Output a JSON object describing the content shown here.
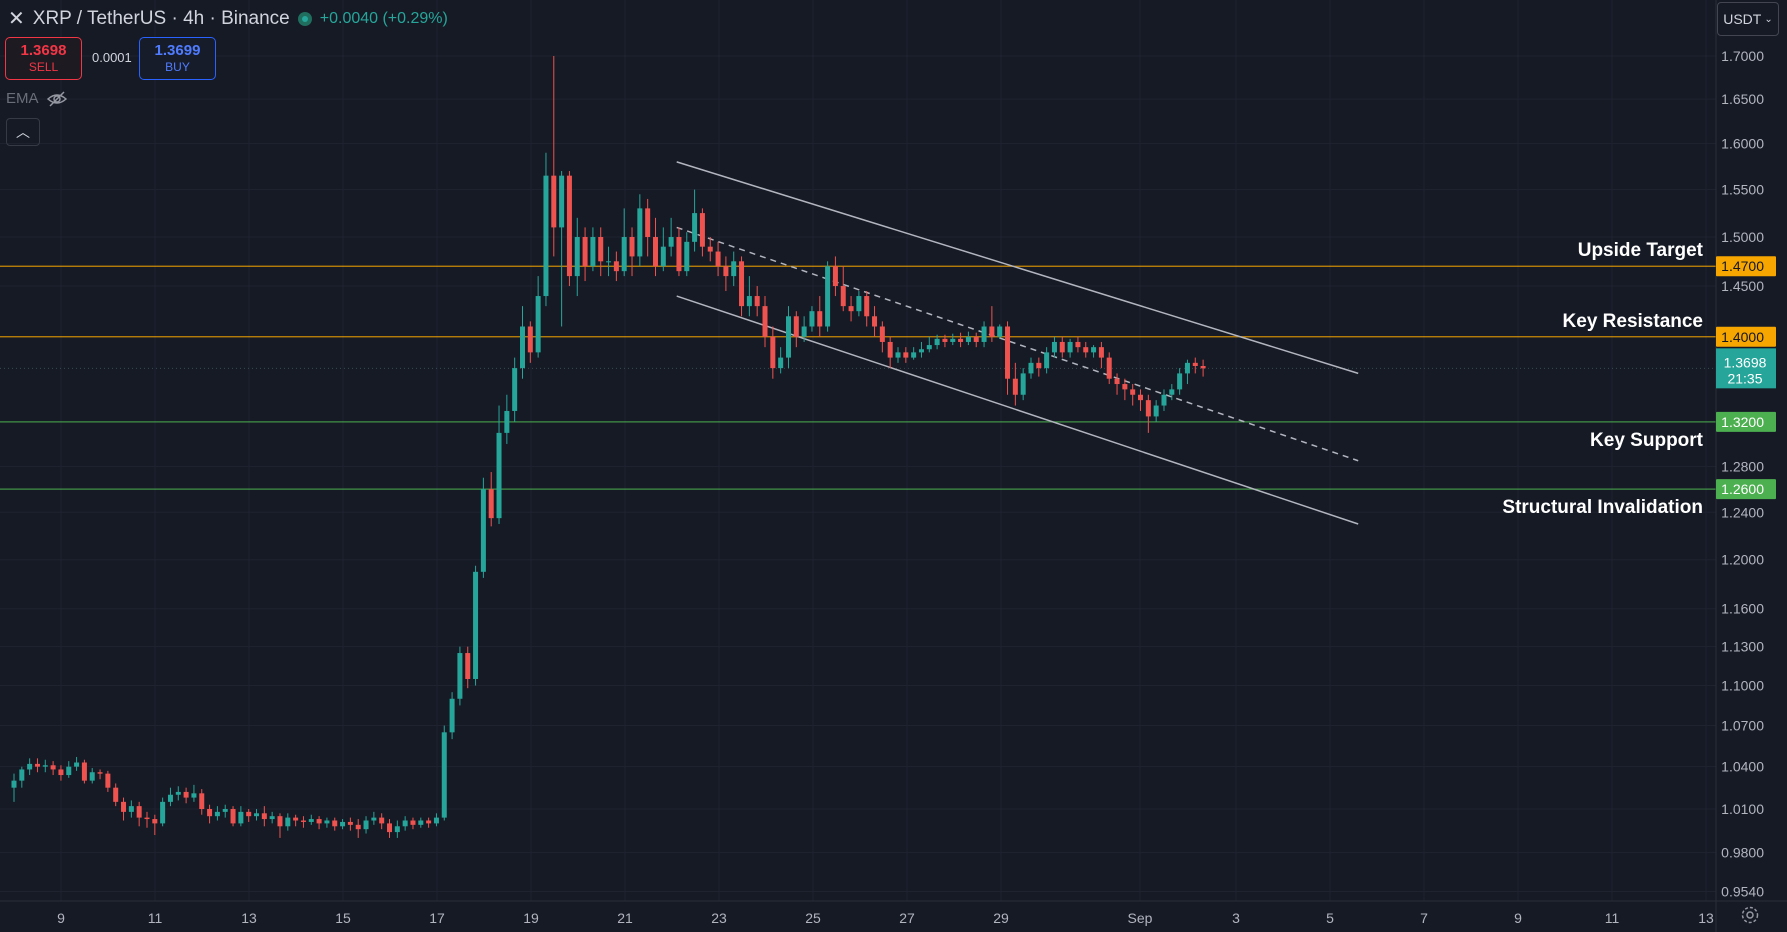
{
  "header": {
    "title": "XRP / TetherUS · 4h · Binance",
    "change": "+0.0040 (+0.29%)"
  },
  "trade": {
    "sell_price": "1.3698",
    "sell_label": "SELL",
    "spread": "0.0001",
    "buy_price": "1.3699",
    "buy_label": "BUY"
  },
  "indicator": {
    "label": "EMA"
  },
  "currency": {
    "label": "USDT"
  },
  "colors": {
    "background": "#161a25",
    "up": "#26a69a",
    "down": "#ef5350",
    "resistance_line": "#f7a600",
    "support_line": "#4caf50",
    "channel": "#b2b5be"
  },
  "chart_data": {
    "type": "candlestick",
    "timeframe": "4h",
    "x_ticks": [
      "9",
      "11",
      "13",
      "15",
      "17",
      "19",
      "21",
      "23",
      "25",
      "27",
      "29",
      "Sep",
      "3",
      "5",
      "7",
      "9",
      "11",
      "13"
    ],
    "y_ticks": [
      "1.7000",
      "1.6500",
      "1.6000",
      "1.5500",
      "1.5000",
      "1.4500",
      "1.2800",
      "1.2400",
      "1.2000",
      "1.1600",
      "1.1300",
      "1.1000",
      "1.0700",
      "1.0400",
      "1.0100",
      "0.9800",
      "0.9540"
    ],
    "last_price": "1.3698",
    "countdown": "21:35",
    "horizontal_levels": [
      {
        "price": 1.47,
        "price_label": "1.4700",
        "label": "Upside Target",
        "kind": "resistance"
      },
      {
        "price": 1.4,
        "price_label": "1.4000",
        "label": "Key Resistance",
        "kind": "resistance"
      },
      {
        "price": 1.32,
        "price_label": "1.3200",
        "label": "Key Support",
        "kind": "support"
      },
      {
        "price": 1.26,
        "price_label": "1.2600",
        "label": "Structural Invalidation",
        "kind": "support"
      }
    ],
    "channel": {
      "upper": {
        "from": [
          "Aug 22",
          1.58
        ],
        "to": [
          "Sep 5",
          1.365
        ]
      },
      "middle": {
        "from": [
          "Aug 22",
          1.51
        ],
        "to": [
          "Sep 5",
          1.285
        ]
      },
      "lower": {
        "from": [
          "Aug 22",
          1.44
        ],
        "to": [
          "Sep 5",
          1.23
        ]
      }
    },
    "candles": [
      [
        1.025,
        1.03,
        1.015,
        1.035
      ],
      [
        1.03,
        1.038,
        1.025,
        1.04
      ],
      [
        1.038,
        1.042,
        1.034,
        1.046
      ],
      [
        1.042,
        1.04,
        1.036,
        1.046
      ],
      [
        1.04,
        1.041,
        1.036,
        1.045
      ],
      [
        1.041,
        1.038,
        1.034,
        1.044
      ],
      [
        1.038,
        1.034,
        1.03,
        1.041
      ],
      [
        1.034,
        1.04,
        1.032,
        1.044
      ],
      [
        1.04,
        1.043,
        1.037,
        1.047
      ],
      [
        1.043,
        1.03,
        1.028,
        1.045
      ],
      [
        1.03,
        1.036,
        1.028,
        1.039
      ],
      [
        1.036,
        1.035,
        1.031,
        1.038
      ],
      [
        1.035,
        1.025,
        1.022,
        1.037
      ],
      [
        1.025,
        1.015,
        1.012,
        1.028
      ],
      [
        1.015,
        1.008,
        1.002,
        1.018
      ],
      [
        1.008,
        1.012,
        1.004,
        1.016
      ],
      [
        1.012,
        1.004,
        0.998,
        1.015
      ],
      [
        1.004,
        1.003,
        0.997,
        1.008
      ],
      [
        1.003,
        1.0,
        0.992,
        1.006
      ],
      [
        1.0,
        1.015,
        0.998,
        1.018
      ],
      [
        1.015,
        1.02,
        1.012,
        1.025
      ],
      [
        1.02,
        1.022,
        1.016,
        1.026
      ],
      [
        1.022,
        1.018,
        1.014,
        1.025
      ],
      [
        1.018,
        1.021,
        1.015,
        1.027
      ],
      [
        1.021,
        1.01,
        1.006,
        1.024
      ],
      [
        1.01,
        1.005,
        1.0,
        1.013
      ],
      [
        1.005,
        1.008,
        1.002,
        1.012
      ],
      [
        1.008,
        1.01,
        1.004,
        1.013
      ],
      [
        1.01,
        1.0,
        0.998,
        1.012
      ],
      [
        1.0,
        1.008,
        0.998,
        1.012
      ],
      [
        1.008,
        1.005,
        1.001,
        1.01
      ],
      [
        1.005,
        1.007,
        1.002,
        1.01
      ],
      [
        1.007,
        1.003,
        0.998,
        1.012
      ],
      [
        1.003,
        1.005,
        1.0,
        1.008
      ],
      [
        1.005,
        0.998,
        0.99,
        1.007
      ],
      [
        0.998,
        1.004,
        0.995,
        1.007
      ],
      [
        1.004,
        1.002,
        0.998,
        1.006
      ],
      [
        1.002,
        1.001,
        0.997,
        1.005
      ],
      [
        1.001,
        1.003,
        0.999,
        1.006
      ],
      [
        1.003,
        1.0,
        0.996,
        1.005
      ],
      [
        1.0,
        1.002,
        0.997,
        1.004
      ],
      [
        1.002,
        0.998,
        0.995,
        1.004
      ],
      [
        0.998,
        1.001,
        0.996,
        1.003
      ],
      [
        1.001,
        0.999,
        0.995,
        1.004
      ],
      [
        0.999,
        0.996,
        0.99,
        1.003
      ],
      [
        0.996,
        1.002,
        0.993,
        1.005
      ],
      [
        1.002,
        1.004,
        0.999,
        1.008
      ],
      [
        1.004,
        1.0,
        0.996,
        1.007
      ],
      [
        1.0,
        0.994,
        0.99,
        1.003
      ],
      [
        0.994,
        0.998,
        0.99,
        1.002
      ],
      [
        0.998,
        1.002,
        0.995,
        1.005
      ],
      [
        1.002,
        0.999,
        0.996,
        1.004
      ],
      [
        0.999,
        1.002,
        0.997,
        1.004
      ],
      [
        1.002,
        1.0,
        0.997,
        1.004
      ],
      [
        1.0,
        1.004,
        0.998,
        1.007
      ],
      [
        1.004,
        1.065,
        1.002,
        1.07
      ],
      [
        1.065,
        1.09,
        1.06,
        1.095
      ],
      [
        1.09,
        1.125,
        1.085,
        1.13
      ],
      [
        1.125,
        1.105,
        1.098,
        1.13
      ],
      [
        1.105,
        1.19,
        1.1,
        1.195
      ],
      [
        1.19,
        1.26,
        1.185,
        1.27
      ],
      [
        1.26,
        1.235,
        1.228,
        1.275
      ],
      [
        1.235,
        1.31,
        1.23,
        1.335
      ],
      [
        1.31,
        1.33,
        1.3,
        1.345
      ],
      [
        1.33,
        1.37,
        1.32,
        1.38
      ],
      [
        1.37,
        1.41,
        1.36,
        1.43
      ],
      [
        1.41,
        1.385,
        1.375,
        1.415
      ],
      [
        1.385,
        1.44,
        1.38,
        1.46
      ],
      [
        1.44,
        1.565,
        1.43,
        1.59
      ],
      [
        1.565,
        1.51,
        1.48,
        1.7
      ],
      [
        1.51,
        1.565,
        1.41,
        1.57
      ],
      [
        1.565,
        1.46,
        1.45,
        1.57
      ],
      [
        1.46,
        1.5,
        1.44,
        1.52
      ],
      [
        1.5,
        1.47,
        1.455,
        1.51
      ],
      [
        1.47,
        1.5,
        1.465,
        1.51
      ],
      [
        1.5,
        1.475,
        1.46,
        1.51
      ],
      [
        1.475,
        1.475,
        1.46,
        1.49
      ],
      [
        1.475,
        1.465,
        1.455,
        1.485
      ],
      [
        1.465,
        1.5,
        1.46,
        1.53
      ],
      [
        1.5,
        1.48,
        1.46,
        1.51
      ],
      [
        1.48,
        1.53,
        1.47,
        1.545
      ],
      [
        1.53,
        1.5,
        1.48,
        1.54
      ],
      [
        1.5,
        1.47,
        1.46,
        1.52
      ],
      [
        1.47,
        1.49,
        1.465,
        1.51
      ],
      [
        1.49,
        1.5,
        1.48,
        1.52
      ],
      [
        1.5,
        1.465,
        1.46,
        1.51
      ],
      [
        1.465,
        1.495,
        1.46,
        1.505
      ],
      [
        1.495,
        1.525,
        1.485,
        1.55
      ],
      [
        1.525,
        1.49,
        1.48,
        1.53
      ],
      [
        1.49,
        1.485,
        1.475,
        1.5
      ],
      [
        1.485,
        1.47,
        1.46,
        1.495
      ],
      [
        1.47,
        1.46,
        1.445,
        1.48
      ],
      [
        1.46,
        1.475,
        1.45,
        1.485
      ],
      [
        1.475,
        1.43,
        1.42,
        1.48
      ],
      [
        1.43,
        1.44,
        1.42,
        1.46
      ],
      [
        1.44,
        1.43,
        1.42,
        1.45
      ],
      [
        1.43,
        1.4,
        1.39,
        1.44
      ],
      [
        1.4,
        1.37,
        1.36,
        1.41
      ],
      [
        1.37,
        1.38,
        1.365,
        1.39
      ],
      [
        1.38,
        1.42,
        1.37,
        1.43
      ],
      [
        1.42,
        1.4,
        1.39,
        1.425
      ],
      [
        1.4,
        1.41,
        1.395,
        1.42
      ],
      [
        1.41,
        1.425,
        1.405,
        1.43
      ],
      [
        1.425,
        1.41,
        1.4,
        1.44
      ],
      [
        1.41,
        1.47,
        1.405,
        1.475
      ],
      [
        1.47,
        1.45,
        1.44,
        1.48
      ],
      [
        1.45,
        1.43,
        1.425,
        1.47
      ],
      [
        1.43,
        1.425,
        1.415,
        1.44
      ],
      [
        1.425,
        1.44,
        1.42,
        1.445
      ],
      [
        1.44,
        1.42,
        1.41,
        1.445
      ],
      [
        1.42,
        1.41,
        1.4,
        1.43
      ],
      [
        1.41,
        1.395,
        1.385,
        1.415
      ],
      [
        1.395,
        1.38,
        1.37,
        1.4
      ],
      [
        1.38,
        1.385,
        1.375,
        1.39
      ],
      [
        1.385,
        1.38,
        1.375,
        1.39
      ],
      [
        1.38,
        1.385,
        1.378,
        1.39
      ],
      [
        1.385,
        1.388,
        1.38,
        1.395
      ],
      [
        1.388,
        1.392,
        1.385,
        1.4
      ],
      [
        1.392,
        1.398,
        1.388,
        1.402
      ],
      [
        1.398,
        1.395,
        1.39,
        1.402
      ],
      [
        1.395,
        1.398,
        1.392,
        1.403
      ],
      [
        1.398,
        1.395,
        1.39,
        1.404
      ],
      [
        1.395,
        1.4,
        1.392,
        1.405
      ],
      [
        1.4,
        1.395,
        1.39,
        1.404
      ],
      [
        1.395,
        1.41,
        1.39,
        1.415
      ],
      [
        1.41,
        1.4,
        1.395,
        1.43
      ],
      [
        1.4,
        1.41,
        1.398,
        1.412
      ],
      [
        1.41,
        1.36,
        1.345,
        1.415
      ],
      [
        1.36,
        1.345,
        1.335,
        1.375
      ],
      [
        1.345,
        1.365,
        1.34,
        1.37
      ],
      [
        1.365,
        1.375,
        1.36,
        1.38
      ],
      [
        1.375,
        1.37,
        1.362,
        1.38
      ],
      [
        1.37,
        1.385,
        1.365,
        1.39
      ],
      [
        1.385,
        1.395,
        1.38,
        1.4
      ],
      [
        1.395,
        1.385,
        1.38,
        1.4
      ],
      [
        1.385,
        1.395,
        1.38,
        1.398
      ],
      [
        1.395,
        1.39,
        1.385,
        1.4
      ],
      [
        1.39,
        1.385,
        1.38,
        1.395
      ],
      [
        1.385,
        1.39,
        1.38,
        1.392
      ],
      [
        1.39,
        1.38,
        1.37,
        1.395
      ],
      [
        1.38,
        1.36,
        1.355,
        1.385
      ],
      [
        1.36,
        1.355,
        1.345,
        1.365
      ],
      [
        1.355,
        1.35,
        1.34,
        1.36
      ],
      [
        1.35,
        1.345,
        1.335,
        1.355
      ],
      [
        1.345,
        1.34,
        1.33,
        1.35
      ],
      [
        1.34,
        1.325,
        1.31,
        1.345
      ],
      [
        1.325,
        1.335,
        1.32,
        1.34
      ],
      [
        1.335,
        1.345,
        1.33,
        1.35
      ],
      [
        1.345,
        1.35,
        1.34,
        1.355
      ],
      [
        1.35,
        1.365,
        1.345,
        1.37
      ],
      [
        1.365,
        1.375,
        1.355,
        1.378
      ],
      [
        1.375,
        1.372,
        1.365,
        1.38
      ],
      [
        1.372,
        1.3698,
        1.362,
        1.378
      ]
    ]
  }
}
